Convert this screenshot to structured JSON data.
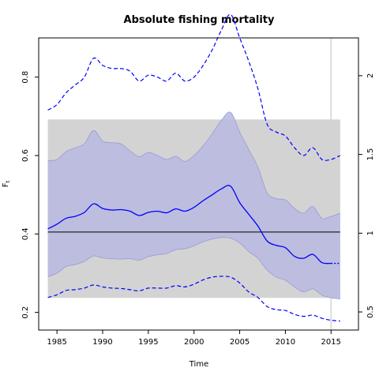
{
  "chart_data": {
    "type": "line",
    "title": "Absolute fishing mortality",
    "xlabel": "Time",
    "ylabel": "F",
    "ylabel_subscript": "t",
    "xlim": [
      1983.0,
      2018.0
    ],
    "ylim": [
      0.155,
      0.9
    ],
    "y2lim": [
      0.385,
      2.24
    ],
    "x_ticks": [
      1985,
      1990,
      1995,
      2000,
      2005,
      2010,
      2015
    ],
    "y_ticks": [
      0.2,
      0.4,
      0.6,
      0.8
    ],
    "y2_ticks": [
      0.5,
      1,
      1.5,
      2
    ],
    "reference_line": 0.405,
    "vertical_line_x": 2015,
    "rect_band": {
      "x0": 1984,
      "x1": 2016,
      "y0": 0.237,
      "y1": 0.692
    },
    "colors": {
      "series": "#0000ff",
      "band_fill": "#b8b8e0",
      "rect_fill": "#d3d3d3",
      "reference": "#000000",
      "vline": "#d3d3d3"
    },
    "series": [
      {
        "role": "estimate",
        "axis": "left",
        "x": [
          1984,
          1985,
          1986,
          1987,
          1988,
          1989,
          1990,
          1991,
          1992,
          1993,
          1994,
          1995,
          1996,
          1997,
          1998,
          1999,
          2000,
          2001,
          2002,
          2003,
          2004,
          2005,
          2006,
          2007,
          2008,
          2009,
          2010,
          2011,
          2012,
          2013,
          2014,
          2015
        ],
        "values": [
          0.413,
          0.425,
          0.44,
          0.445,
          0.455,
          0.477,
          0.465,
          0.461,
          0.462,
          0.458,
          0.447,
          0.455,
          0.458,
          0.454,
          0.464,
          0.458,
          0.468,
          0.485,
          0.5,
          0.515,
          0.522,
          0.48,
          0.45,
          0.42,
          0.382,
          0.371,
          0.365,
          0.343,
          0.338,
          0.348,
          0.327,
          0.325
        ]
      },
      {
        "role": "estimate-projection",
        "axis": "left",
        "x": [
          2015,
          2016
        ],
        "values": [
          0.325,
          0.325
        ]
      },
      {
        "role": "ci-upper",
        "axis": "left",
        "x": [
          1984,
          1985,
          1986,
          1987,
          1988,
          1989,
          1990,
          1991,
          1992,
          1993,
          1994,
          1995,
          1996,
          1997,
          1998,
          1999,
          2000,
          2001,
          2002,
          2003,
          2004,
          2005,
          2006,
          2007,
          2008,
          2009,
          2010,
          2011,
          2012,
          2013,
          2014,
          2015,
          2016
        ],
        "values": [
          0.587,
          0.59,
          0.61,
          0.62,
          0.63,
          0.664,
          0.637,
          0.633,
          0.63,
          0.612,
          0.597,
          0.608,
          0.6,
          0.59,
          0.598,
          0.585,
          0.6,
          0.625,
          0.656,
          0.69,
          0.71,
          0.66,
          0.615,
          0.57,
          0.505,
          0.49,
          0.487,
          0.465,
          0.453,
          0.47,
          0.44,
          0.445,
          0.453
        ]
      },
      {
        "role": "ci-lower",
        "axis": "left",
        "x": [
          1984,
          1985,
          1986,
          1987,
          1988,
          1989,
          1990,
          1991,
          1992,
          1993,
          1994,
          1995,
          1996,
          1997,
          1998,
          1999,
          2000,
          2001,
          2002,
          2003,
          2004,
          2005,
          2006,
          2007,
          2008,
          2009,
          2010,
          2011,
          2012,
          2013,
          2014,
          2015,
          2016
        ],
        "values": [
          0.291,
          0.3,
          0.317,
          0.322,
          0.33,
          0.344,
          0.339,
          0.337,
          0.336,
          0.337,
          0.333,
          0.342,
          0.347,
          0.35,
          0.36,
          0.362,
          0.37,
          0.38,
          0.387,
          0.391,
          0.389,
          0.377,
          0.355,
          0.338,
          0.308,
          0.29,
          0.282,
          0.265,
          0.252,
          0.26,
          0.244,
          0.237,
          0.234
        ]
      },
      {
        "role": "upper-dashed",
        "axis": "left",
        "x": [
          1984,
          1985,
          1986,
          1987,
          1988,
          1989,
          1990,
          1991,
          1992,
          1993,
          1994,
          1995,
          1996,
          1997,
          1998,
          1999,
          2000,
          2001,
          2002,
          2003,
          2004,
          2005,
          2006,
          2007,
          2008,
          2009,
          2010,
          2011,
          2012,
          2013,
          2014,
          2015,
          2016
        ],
        "values": [
          0.716,
          0.73,
          0.76,
          0.78,
          0.8,
          0.848,
          0.83,
          0.822,
          0.822,
          0.815,
          0.79,
          0.805,
          0.8,
          0.79,
          0.81,
          0.79,
          0.8,
          0.83,
          0.87,
          0.92,
          0.96,
          0.9,
          0.84,
          0.77,
          0.68,
          0.66,
          0.65,
          0.62,
          0.6,
          0.62,
          0.59,
          0.59,
          0.6
        ]
      },
      {
        "role": "lower-dashed",
        "axis": "left",
        "x": [
          1984,
          1985,
          1986,
          1987,
          1988,
          1989,
          1990,
          1991,
          1992,
          1993,
          1994,
          1995,
          1996,
          1997,
          1998,
          1999,
          2000,
          2001,
          2002,
          2003,
          2004,
          2005,
          2006,
          2007,
          2008,
          2009,
          2010,
          2011,
          2012,
          2013,
          2014,
          2015,
          2016
        ],
        "values": [
          0.238,
          0.245,
          0.256,
          0.258,
          0.262,
          0.27,
          0.265,
          0.262,
          0.261,
          0.258,
          0.255,
          0.262,
          0.262,
          0.262,
          0.268,
          0.265,
          0.272,
          0.283,
          0.29,
          0.292,
          0.29,
          0.275,
          0.252,
          0.238,
          0.215,
          0.207,
          0.205,
          0.195,
          0.19,
          0.193,
          0.185,
          0.18,
          0.178
        ]
      }
    ]
  }
}
